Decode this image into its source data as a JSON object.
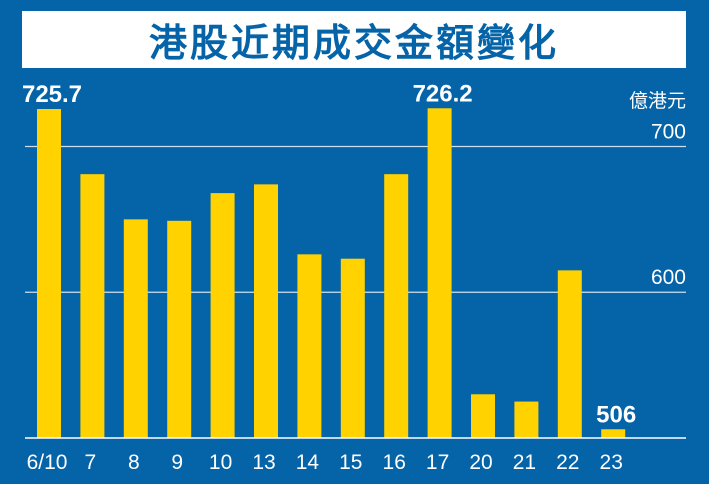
{
  "colors": {
    "background": "#0563a8",
    "bar": "#ffd200",
    "grid": "#ffffff",
    "text": "#ffffff",
    "title_text": "#0563a8"
  },
  "chart_data": {
    "type": "bar",
    "title": "港股近期成交金額變化",
    "ylabel": "億港元",
    "xlabel": "",
    "categories": [
      "6/10",
      "7",
      "8",
      "9",
      "10",
      "13",
      "14",
      "15",
      "16",
      "17",
      "20",
      "21",
      "22",
      "23"
    ],
    "values": [
      725.7,
      681,
      650,
      649,
      668,
      674,
      626,
      623,
      681,
      726.2,
      530,
      525,
      615,
      506
    ],
    "data_labels": [
      {
        "index": 0,
        "text": "725.7"
      },
      {
        "index": 9,
        "text": "726.2"
      },
      {
        "index": 13,
        "text": "506"
      }
    ],
    "yticks": [
      600,
      700
    ],
    "ytick_labels": [
      "600",
      "700"
    ],
    "ylim": [
      500,
      725.7
    ],
    "grid": true
  }
}
